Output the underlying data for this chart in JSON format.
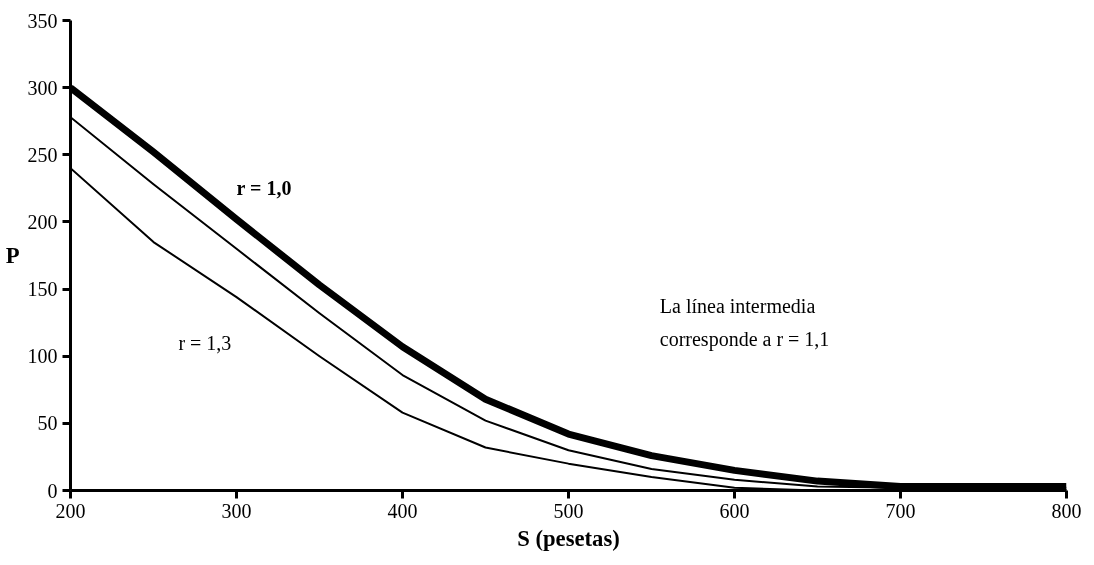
{
  "chart_data": {
    "type": "line",
    "xlabel": "S (pesetas)",
    "ylabel": "P",
    "x": [
      200,
      250,
      300,
      350,
      400,
      450,
      500,
      550,
      600,
      650,
      700,
      800
    ],
    "xlim": [
      200,
      800
    ],
    "ylim": [
      0,
      350
    ],
    "xticks": [
      200,
      300,
      400,
      500,
      600,
      700,
      800
    ],
    "yticks": [
      0,
      50,
      100,
      150,
      200,
      250,
      300,
      350
    ],
    "grid": false,
    "marker": "none",
    "line_style": "solid",
    "series": [
      {
        "color": "#000000",
        "values": [
          300,
          252,
          202,
          153,
          107,
          68,
          42,
          26,
          15,
          7,
          3,
          3
        ]
      },
      {
        "color": "#000000",
        "values": [
          278,
          228,
          180,
          132,
          86,
          52,
          30,
          16,
          8,
          3,
          2,
          2
        ]
      },
      {
        "color": "#000000",
        "values": [
          240,
          185,
          144,
          100,
          58,
          32,
          20,
          10,
          2,
          0,
          0,
          0
        ]
      }
    ],
    "annotations": [
      "r = 1,0",
      "r = 1,3",
      "La línea intermedia\ncorresponde a r = 1,1"
    ]
  }
}
